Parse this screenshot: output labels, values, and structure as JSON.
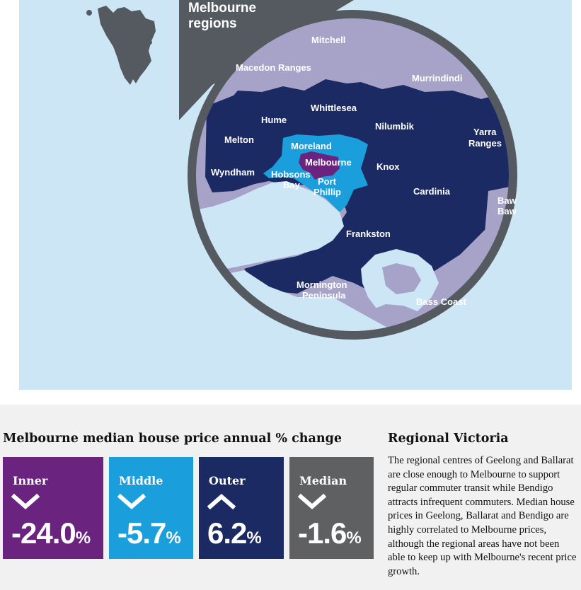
{
  "map": {
    "title_line1": "Melbourne",
    "title_line2": "regions",
    "colors": {
      "water": "#cde6f6",
      "rim": "#555a60",
      "regional": "#a7a3c8",
      "outer": "#1b2a63",
      "middle": "#1a9fdc",
      "inner": "#6a237f",
      "island": "#555a60"
    },
    "labels": {
      "mitchell": "Mitchell",
      "macedon": "Macedon Ranges",
      "murrindindi": "Murrindindi",
      "hume": "Hume",
      "whittlesea": "Whittlesea",
      "nilumbik": "Nilumbik",
      "yarra_ranges_1": "Yarra",
      "yarra_ranges_2": "Ranges",
      "melton": "Melton",
      "moreland": "Moreland",
      "melbourne": "Melbourne",
      "knox": "Knox",
      "wyndham": "Wyndham",
      "hobsons_bay_1": "Hobsons",
      "hobsons_bay_2": "Bay",
      "port_phillip_1": "Port",
      "port_phillip_2": "Phillip",
      "cardinia": "Cardinia",
      "baw_baw_1": "Baw",
      "baw_baw_2": "Baw",
      "frankston": "Frankston",
      "mornington_1": "Mornington",
      "mornington_2": "Peninsula",
      "bass_coast": "Bass Coast"
    }
  },
  "chart": {
    "title": "Melbourne median house price annual % change",
    "boxes": [
      {
        "label": "Inner",
        "direction": "down",
        "value": "-24.0",
        "unit": "%",
        "color": "#6a237f"
      },
      {
        "label": "Middle",
        "direction": "down",
        "value": "-5.7",
        "unit": "%",
        "color": "#1a9fdc"
      },
      {
        "label": "Outer",
        "direction": "up",
        "value": "6.2",
        "unit": "%",
        "color": "#1b2a63"
      },
      {
        "label": "Median",
        "direction": "down",
        "value": "-1.6",
        "unit": "%",
        "color": "#5f6062"
      }
    ]
  },
  "sidebar": {
    "title": "Regional Victoria",
    "text": "The regional centres of Geelong and Ballarat are close enough to Melbourne to support regular commuter transit while Bendigo attracts infrequent commuters. Median house prices in Geelong, Ballarat and Bendigo are highly correlated to Melbourne prices, although the regional areas have not been able to keep up with Melbourne's recent price growth."
  }
}
